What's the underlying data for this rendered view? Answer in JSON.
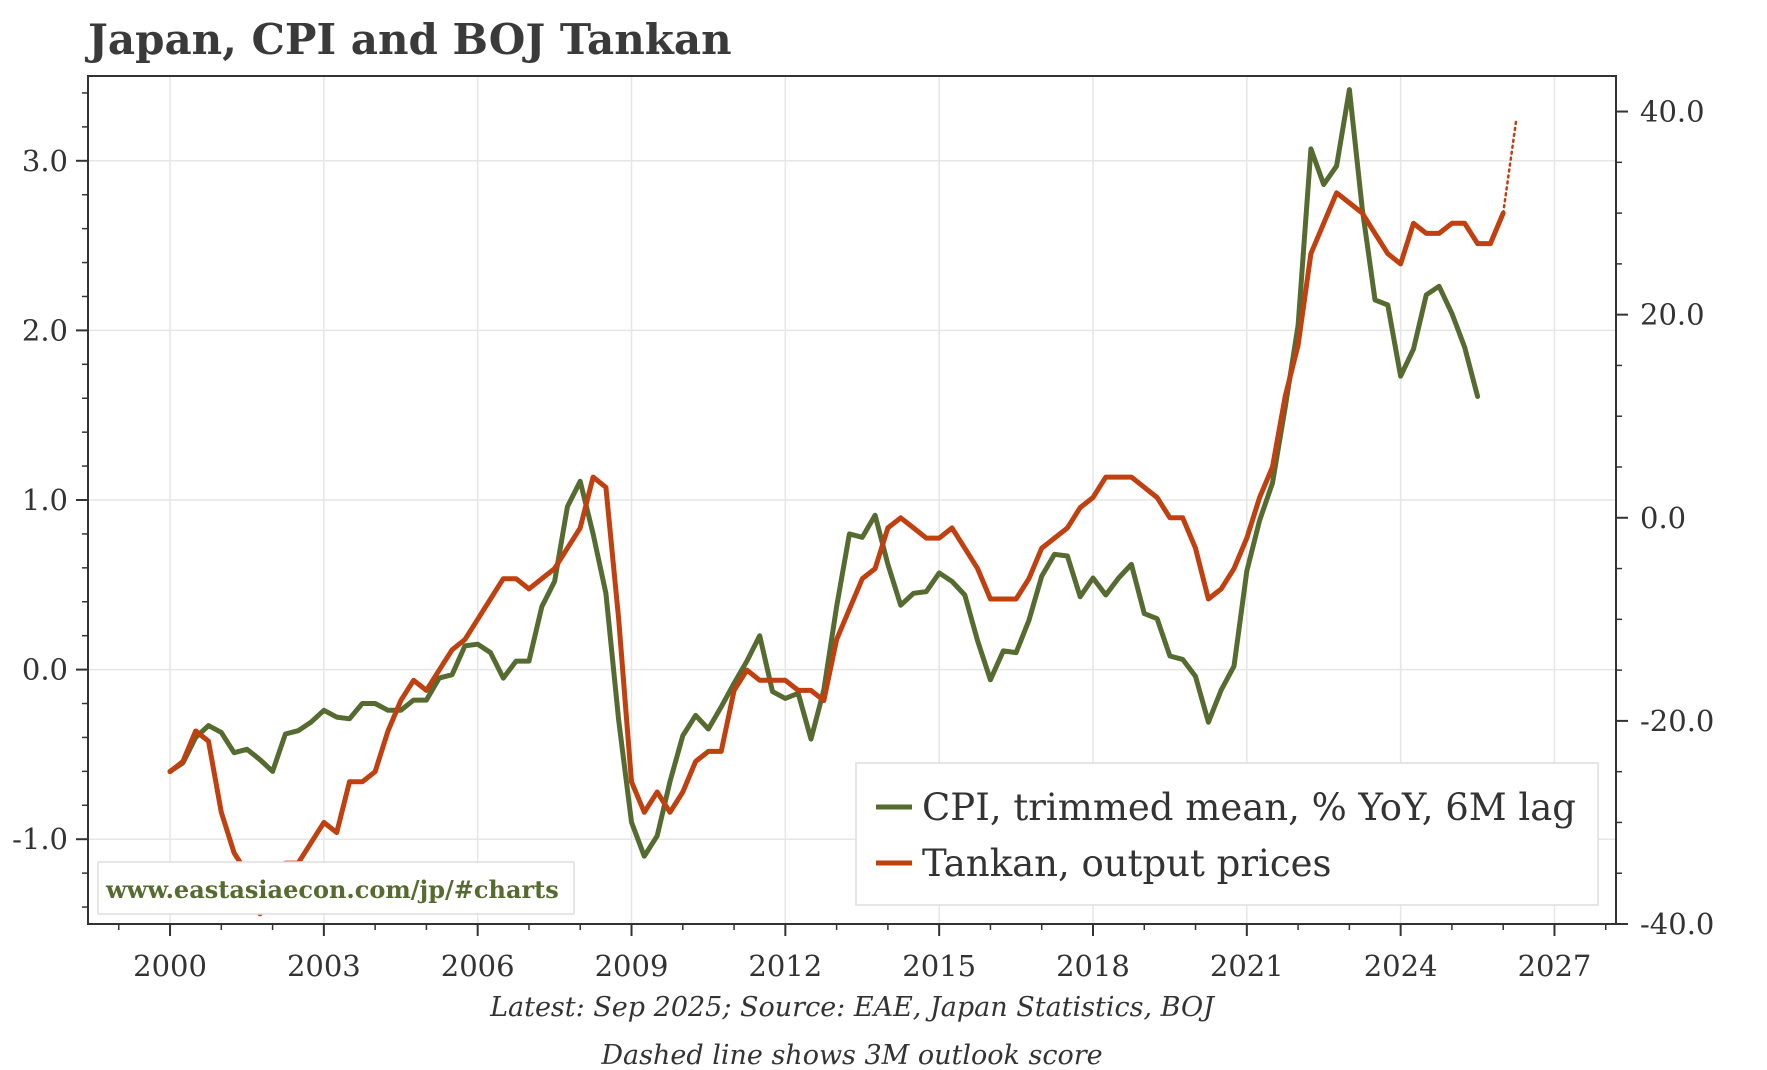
{
  "title": "Japan, CPI and BOJ Tankan",
  "notes": [
    "Latest: Sep 2025; Source: EAE, Japan Statistics, BOJ",
    "Dashed line shows 3M outlook score"
  ],
  "watermark": "www.eastasiaecon.com/jp/#charts",
  "colors": {
    "cpi": "#556b2f",
    "tankan": "#c0400f",
    "grid": "#e6e6e6",
    "axis": "#333333"
  },
  "chart_data": {
    "type": "line",
    "title": "Japan, CPI and BOJ Tankan",
    "xlabel": "",
    "ylabel_left": "",
    "ylabel_right": "",
    "xlim": [
      1998.4,
      2028.2
    ],
    "ylim_left": [
      -1.5,
      3.5
    ],
    "ylim_right": [
      -40,
      43.5
    ],
    "x_ticks": [
      2000,
      2003,
      2006,
      2009,
      2012,
      2015,
      2018,
      2021,
      2024,
      2027
    ],
    "x_tick_labels": [
      "2000",
      "2003",
      "2006",
      "2009",
      "2012",
      "2015",
      "2018",
      "2021",
      "2024",
      "2027"
    ],
    "y_left_ticks": [
      -1.0,
      0.0,
      1.0,
      2.0,
      3.0
    ],
    "y_left_tick_labels": [
      "-1.0",
      "0.0",
      "1.0",
      "2.0",
      "3.0"
    ],
    "y_right_ticks": [
      -40,
      -20,
      0,
      20,
      40
    ],
    "y_right_tick_labels": [
      "-40.0",
      "-20.0",
      "0.0",
      "20.0",
      "40.0"
    ],
    "grid": true,
    "legend_position": "bottom-right",
    "series": [
      {
        "name": "CPI, trimmed mean, % YoY, 6M lag",
        "axis": "left",
        "color": "#556b2f",
        "x": [
          2000.0,
          2000.25,
          2000.5,
          2000.75,
          2001.0,
          2001.25,
          2001.5,
          2001.75,
          2002.0,
          2002.25,
          2002.5,
          2002.75,
          2003.0,
          2003.25,
          2003.5,
          2003.75,
          2004.0,
          2004.25,
          2004.5,
          2004.75,
          2005.0,
          2005.25,
          2005.5,
          2005.75,
          2006.0,
          2006.25,
          2006.5,
          2006.75,
          2007.0,
          2007.25,
          2007.5,
          2007.75,
          2008.0,
          2008.25,
          2008.5,
          2008.75,
          2009.0,
          2009.25,
          2009.5,
          2009.75,
          2010.0,
          2010.25,
          2010.5,
          2010.75,
          2011.0,
          2011.25,
          2011.5,
          2011.75,
          2012.0,
          2012.25,
          2012.5,
          2012.75,
          2013.0,
          2013.25,
          2013.5,
          2013.75,
          2014.0,
          2014.25,
          2014.5,
          2014.75,
          2015.0,
          2015.25,
          2015.5,
          2015.75,
          2016.0,
          2016.25,
          2016.5,
          2016.75,
          2017.0,
          2017.25,
          2017.5,
          2017.75,
          2018.0,
          2018.25,
          2018.5,
          2018.75,
          2019.0,
          2019.25,
          2019.5,
          2019.75,
          2020.0,
          2020.25,
          2020.5,
          2020.75,
          2021.0,
          2021.25,
          2021.5,
          2021.75,
          2022.0,
          2022.25,
          2022.5,
          2022.75,
          2023.0,
          2023.25,
          2023.5,
          2023.75,
          2024.0,
          2024.25,
          2024.5,
          2024.75,
          2025.0,
          2025.25,
          2025.5
        ],
        "values": [
          -0.6,
          -0.55,
          -0.4,
          -0.33,
          -0.37,
          -0.49,
          -0.47,
          -0.53,
          -0.6,
          -0.38,
          -0.36,
          -0.31,
          -0.24,
          -0.28,
          -0.29,
          -0.2,
          -0.2,
          -0.24,
          -0.24,
          -0.18,
          -0.18,
          -0.05,
          -0.03,
          0.14,
          0.15,
          0.1,
          -0.05,
          0.05,
          0.05,
          0.37,
          0.52,
          0.96,
          1.11,
          0.8,
          0.45,
          -0.3,
          -0.9,
          -1.1,
          -0.98,
          -0.66,
          -0.39,
          -0.27,
          -0.35,
          -0.22,
          -0.08,
          0.05,
          0.2,
          -0.13,
          -0.17,
          -0.14,
          -0.41,
          -0.12,
          0.37,
          0.8,
          0.78,
          0.91,
          0.62,
          0.38,
          0.45,
          0.46,
          0.57,
          0.52,
          0.44,
          0.17,
          -0.06,
          0.11,
          0.1,
          0.29,
          0.55,
          0.68,
          0.67,
          0.43,
          0.54,
          0.44,
          0.54,
          0.62,
          0.33,
          0.3,
          0.08,
          0.06,
          -0.04,
          -0.31,
          -0.12,
          0.02,
          0.58,
          0.88,
          1.1,
          1.55,
          2.03,
          3.07,
          2.86,
          2.97,
          3.42,
          2.72,
          2.18,
          2.15,
          1.73,
          1.89,
          2.21,
          2.26,
          2.1,
          1.9,
          1.61
        ]
      },
      {
        "name": "Tankan, output prices",
        "axis": "right",
        "color": "#c0400f",
        "x": [
          2000.0,
          2000.25,
          2000.5,
          2000.75,
          2001.0,
          2001.25,
          2001.5,
          2001.75,
          2002.0,
          2002.25,
          2002.5,
          2002.75,
          2003.0,
          2003.25,
          2003.5,
          2003.75,
          2004.0,
          2004.25,
          2004.5,
          2004.75,
          2005.0,
          2005.25,
          2005.5,
          2005.75,
          2006.0,
          2006.25,
          2006.5,
          2006.75,
          2007.0,
          2007.25,
          2007.5,
          2007.75,
          2008.0,
          2008.25,
          2008.5,
          2008.75,
          2009.0,
          2009.25,
          2009.5,
          2009.75,
          2010.0,
          2010.25,
          2010.5,
          2010.75,
          2011.0,
          2011.25,
          2011.5,
          2011.75,
          2012.0,
          2012.25,
          2012.5,
          2012.75,
          2013.0,
          2013.25,
          2013.5,
          2013.75,
          2014.0,
          2014.25,
          2014.5,
          2014.75,
          2015.0,
          2015.25,
          2015.5,
          2015.75,
          2016.0,
          2016.25,
          2016.5,
          2016.75,
          2017.0,
          2017.25,
          2017.5,
          2017.75,
          2018.0,
          2018.25,
          2018.5,
          2018.75,
          2019.0,
          2019.25,
          2019.5,
          2019.75,
          2020.0,
          2020.25,
          2020.5,
          2020.75,
          2021.0,
          2021.25,
          2021.5,
          2021.75,
          2022.0,
          2022.25,
          2022.5,
          2022.75,
          2023.0,
          2023.25,
          2023.5,
          2023.75,
          2024.0,
          2024.25,
          2024.5,
          2024.75,
          2025.0,
          2025.25,
          2025.5,
          2025.75,
          2026.0
        ],
        "values": [
          -25,
          -24,
          -21,
          -22,
          -29,
          -33,
          -35,
          -39,
          -38,
          -34,
          -34,
          -32,
          -30,
          -31,
          -26,
          -26,
          -25,
          -21,
          -18,
          -16,
          -17,
          -15,
          -13,
          -12,
          -10,
          -8,
          -6,
          -6,
          -7,
          -6,
          -5,
          -3,
          -1,
          4,
          3,
          -10,
          -26,
          -29,
          -27,
          -29,
          -27,
          -24,
          -23,
          -23,
          -17,
          -15,
          -16,
          -16,
          -16,
          -17,
          -17,
          -18,
          -12,
          -9,
          -6,
          -5,
          -1,
          0,
          -1,
          -2,
          -2,
          -1,
          -3,
          -5,
          -8,
          -8,
          -8,
          -6,
          -3,
          -2,
          -1,
          1,
          2,
          4,
          4,
          4,
          3,
          2,
          0,
          0,
          -3,
          -8,
          -7,
          -5,
          -2,
          2,
          5,
          12,
          17,
          26,
          29,
          32,
          31,
          30,
          28,
          26,
          25,
          29,
          28,
          28,
          29,
          29,
          27,
          27,
          30
        ]
      },
      {
        "name": "Tankan, 3M outlook score",
        "axis": "right",
        "color": "#c0400f",
        "dashed": true,
        "x": [
          2026.0,
          2026.25
        ],
        "values": [
          30,
          39
        ]
      }
    ]
  }
}
